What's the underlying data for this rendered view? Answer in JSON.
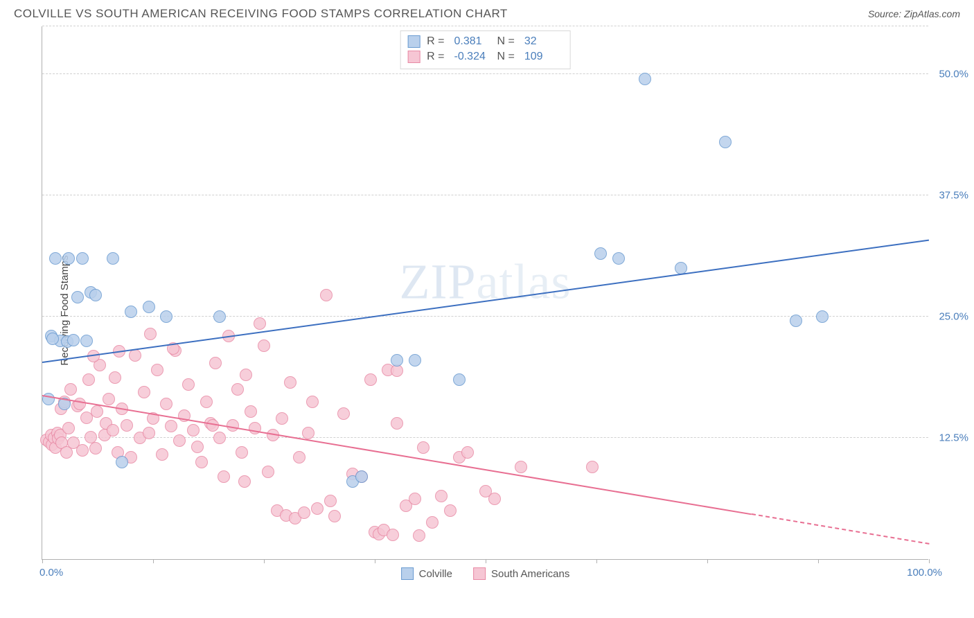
{
  "title": "COLVILLE VS SOUTH AMERICAN RECEIVING FOOD STAMPS CORRELATION CHART",
  "source_prefix": "Source: ",
  "source_name": "ZipAtlas.com",
  "ylabel": "Receiving Food Stamps",
  "watermark_a": "ZIP",
  "watermark_b": "atlas",
  "chart": {
    "type": "scatter",
    "xlim": [
      0,
      100
    ],
    "ylim": [
      0,
      55
    ],
    "xtick_labels": {
      "start": "0.0%",
      "end": "100.0%"
    },
    "xtick_positions": [
      0,
      12.5,
      25,
      37.5,
      50,
      62.5,
      75,
      87.5,
      100
    ],
    "ytick_positions": [
      12.5,
      25,
      37.5,
      50
    ],
    "ytick_labels": [
      "12.5%",
      "25.0%",
      "37.5%",
      "50.0%"
    ],
    "grid_color": "#d0d0d0",
    "axis_color": "#b0b0b0",
    "background_color": "#ffffff",
    "point_radius": 9,
    "point_border_width": 1.5,
    "series": {
      "colville": {
        "label": "Colville",
        "fill": "#b9d0ec",
        "stroke": "#6a9bd1",
        "trend_color": "#3c6fc0",
        "R": "0.381",
        "N": "32",
        "trend": {
          "x1": 0,
          "y1": 20.2,
          "x2": 100,
          "y2": 32.8
        },
        "points": [
          [
            1,
            23
          ],
          [
            1.5,
            31
          ],
          [
            2,
            22.5
          ],
          [
            3,
            31
          ],
          [
            2.5,
            16
          ],
          [
            4,
            27
          ],
          [
            5,
            22.5
          ],
          [
            5.5,
            27.5
          ],
          [
            8,
            31
          ],
          [
            9,
            10
          ],
          [
            10,
            25.5
          ],
          [
            12,
            26
          ],
          [
            14,
            25
          ],
          [
            20,
            25
          ],
          [
            35,
            8
          ],
          [
            36,
            8.5
          ],
          [
            40,
            20.5
          ],
          [
            42,
            20.5
          ],
          [
            47,
            18.5
          ],
          [
            63,
            31.5
          ],
          [
            65,
            31
          ],
          [
            68,
            49.5
          ],
          [
            72,
            30
          ],
          [
            77,
            43
          ],
          [
            85,
            24.6
          ],
          [
            88,
            25
          ],
          [
            1.2,
            22.7
          ],
          [
            2.8,
            22.4
          ],
          [
            0.7,
            16.5
          ],
          [
            6,
            27.2
          ],
          [
            3.5,
            22.6
          ],
          [
            4.5,
            31
          ]
        ]
      },
      "south_americans": {
        "label": "South Americans",
        "fill": "#f6c6d4",
        "stroke": "#e88aa5",
        "trend_color": "#e86f92",
        "R": "-0.324",
        "N": "109",
        "trend": {
          "x1": 0,
          "y1": 16.8,
          "x2": 100,
          "y2": 1.5
        },
        "trend_solid_until": 80,
        "points": [
          [
            0.5,
            12.3
          ],
          [
            0.8,
            12.1
          ],
          [
            1,
            12.8
          ],
          [
            1.1,
            11.8
          ],
          [
            1.3,
            12.5
          ],
          [
            1.5,
            11.5
          ],
          [
            1.7,
            13
          ],
          [
            1.8,
            12.4
          ],
          [
            2,
            12.8
          ],
          [
            2.1,
            15.5
          ],
          [
            2.2,
            12
          ],
          [
            2.5,
            16.2
          ],
          [
            2.7,
            11
          ],
          [
            3,
            13.5
          ],
          [
            3.2,
            17.5
          ],
          [
            3.5,
            12
          ],
          [
            4,
            15.8
          ],
          [
            4.2,
            16
          ],
          [
            4.5,
            11.2
          ],
          [
            5,
            14.6
          ],
          [
            5.2,
            18.5
          ],
          [
            5.5,
            12.6
          ],
          [
            6,
            11.4
          ],
          [
            6.2,
            15.2
          ],
          [
            6.5,
            20
          ],
          [
            7,
            12.8
          ],
          [
            7.2,
            14
          ],
          [
            7.5,
            16.5
          ],
          [
            8,
            13.3
          ],
          [
            8.2,
            18.7
          ],
          [
            8.5,
            11
          ],
          [
            9,
            15.5
          ],
          [
            9.5,
            13.8
          ],
          [
            10,
            10.5
          ],
          [
            10.5,
            21
          ],
          [
            11,
            12.5
          ],
          [
            11.5,
            17.2
          ],
          [
            12,
            13
          ],
          [
            12.5,
            14.5
          ],
          [
            13,
            19.5
          ],
          [
            13.5,
            10.8
          ],
          [
            14,
            16
          ],
          [
            14.5,
            13.7
          ],
          [
            15,
            21.5
          ],
          [
            15.5,
            12.2
          ],
          [
            16,
            14.8
          ],
          [
            16.5,
            18
          ],
          [
            17,
            13.3
          ],
          [
            17.5,
            11.6
          ],
          [
            18,
            10
          ],
          [
            18.5,
            16.2
          ],
          [
            19,
            14
          ],
          [
            19.5,
            20.2
          ],
          [
            20,
            12.5
          ],
          [
            20.5,
            8.5
          ],
          [
            21,
            23
          ],
          [
            21.5,
            13.8
          ],
          [
            22,
            17.5
          ],
          [
            22.5,
            11
          ],
          [
            23,
            19
          ],
          [
            23.5,
            15.2
          ],
          [
            24,
            13.5
          ],
          [
            25,
            22
          ],
          [
            25.5,
            9
          ],
          [
            26,
            12.8
          ],
          [
            26.5,
            5
          ],
          [
            27,
            14.5
          ],
          [
            27.5,
            4.5
          ],
          [
            28,
            18.2
          ],
          [
            28.5,
            4.2
          ],
          [
            29,
            10.5
          ],
          [
            29.5,
            4.8
          ],
          [
            30,
            13
          ],
          [
            31,
            5.2
          ],
          [
            32,
            27.2
          ],
          [
            32.5,
            6
          ],
          [
            33,
            4.4
          ],
          [
            34,
            15
          ],
          [
            35,
            8.8
          ],
          [
            36,
            8.5
          ],
          [
            37,
            18.5
          ],
          [
            37.5,
            2.8
          ],
          [
            38,
            2.6
          ],
          [
            38.5,
            3
          ],
          [
            39,
            19.5
          ],
          [
            39.5,
            2.5
          ],
          [
            40,
            14
          ],
          [
            41,
            5.5
          ],
          [
            42,
            6.2
          ],
          [
            42.5,
            2.4
          ],
          [
            43,
            11.5
          ],
          [
            44,
            3.8
          ],
          [
            45,
            6.5
          ],
          [
            46,
            5
          ],
          [
            47,
            10.5
          ],
          [
            48,
            11
          ],
          [
            50,
            7
          ],
          [
            51,
            6.2
          ],
          [
            54,
            9.5
          ],
          [
            62,
            9.5
          ],
          [
            40,
            19.4
          ],
          [
            30.5,
            16.2
          ],
          [
            24.5,
            24.3
          ],
          [
            12.2,
            23.2
          ],
          [
            8.7,
            21.4
          ],
          [
            5.8,
            20.9
          ],
          [
            14.8,
            21.7
          ],
          [
            19.2,
            13.8
          ],
          [
            22.8,
            8
          ]
        ]
      }
    }
  },
  "legend_top": {
    "r_label": "R =",
    "n_label": "N ="
  }
}
